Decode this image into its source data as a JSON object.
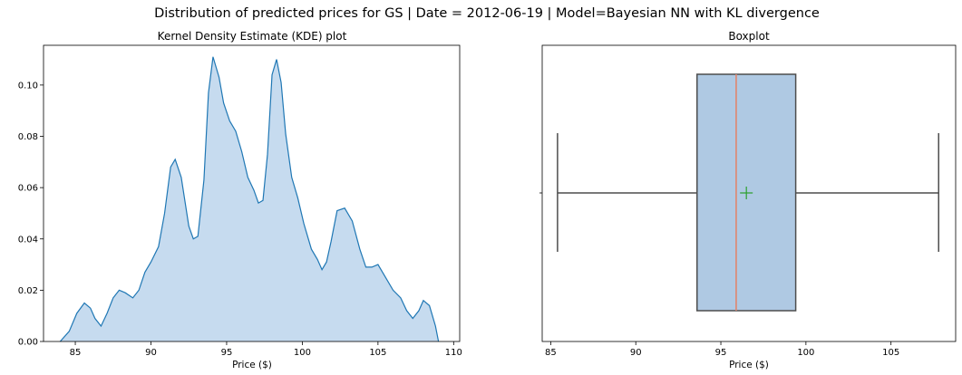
{
  "suptitle": "Distribution of predicted prices for GS | Date = 2012-06-19 | Model=Bayesian NN with KL divergence",
  "colors": {
    "kde_line": "#1f77b4",
    "kde_fill": "#c6dbef",
    "box_fill": "#afc9e3",
    "box_edge": "#4d4d4d",
    "median": "#e0866e",
    "mean_marker": "#2ca02c"
  },
  "chart_data": [
    {
      "type": "area",
      "title": "Kernel Density Estimate (KDE) plot",
      "xlabel": "Price ($)",
      "ylabel": "",
      "xlim": [
        82.9,
        110.4
      ],
      "ylim": [
        0,
        0.1155
      ],
      "xticks": [
        85,
        90,
        95,
        100,
        105,
        110
      ],
      "yticks": [
        0.0,
        0.02,
        0.04,
        0.06,
        0.08,
        0.1
      ],
      "ytick_labels": [
        "0.00",
        "0.02",
        "0.04",
        "0.06",
        "0.08",
        "0.10"
      ],
      "grid": false,
      "x": [
        84.0,
        84.6,
        85.1,
        85.6,
        86.0,
        86.3,
        86.7,
        87.1,
        87.5,
        87.9,
        88.3,
        88.8,
        89.2,
        89.6,
        90.0,
        90.5,
        90.9,
        91.3,
        91.6,
        92.0,
        92.5,
        92.8,
        93.1,
        93.5,
        93.8,
        94.1,
        94.5,
        94.8,
        95.2,
        95.6,
        96.0,
        96.4,
        96.8,
        97.1,
        97.4,
        97.7,
        98.0,
        98.3,
        98.6,
        98.9,
        99.3,
        99.7,
        100.1,
        100.6,
        101.0,
        101.3,
        101.6,
        101.9,
        102.3,
        102.8,
        103.3,
        103.8,
        104.2,
        104.6,
        105.0,
        105.5,
        106.0,
        106.5,
        106.9,
        107.3,
        107.7,
        108.0,
        108.4,
        108.8,
        109.0
      ],
      "y": [
        0.0,
        0.004,
        0.011,
        0.015,
        0.013,
        0.009,
        0.006,
        0.011,
        0.017,
        0.02,
        0.019,
        0.017,
        0.02,
        0.027,
        0.031,
        0.037,
        0.05,
        0.068,
        0.071,
        0.064,
        0.045,
        0.04,
        0.041,
        0.063,
        0.097,
        0.111,
        0.103,
        0.093,
        0.086,
        0.082,
        0.074,
        0.064,
        0.059,
        0.054,
        0.055,
        0.073,
        0.104,
        0.11,
        0.101,
        0.081,
        0.064,
        0.056,
        0.046,
        0.036,
        0.032,
        0.028,
        0.031,
        0.039,
        0.051,
        0.052,
        0.047,
        0.036,
        0.029,
        0.029,
        0.03,
        0.025,
        0.02,
        0.017,
        0.012,
        0.009,
        0.012,
        0.016,
        0.014,
        0.006,
        0.0
      ]
    },
    {
      "type": "box",
      "title": "Boxplot",
      "xlabel": "Price ($)",
      "xlim": [
        84.5,
        108.8
      ],
      "xticks": [
        85,
        90,
        95,
        100,
        105
      ],
      "whisker_low": 85.4,
      "q1": 93.6,
      "median": 95.9,
      "mean": 96.5,
      "q3": 99.4,
      "whisker_high": 107.8
    }
  ]
}
